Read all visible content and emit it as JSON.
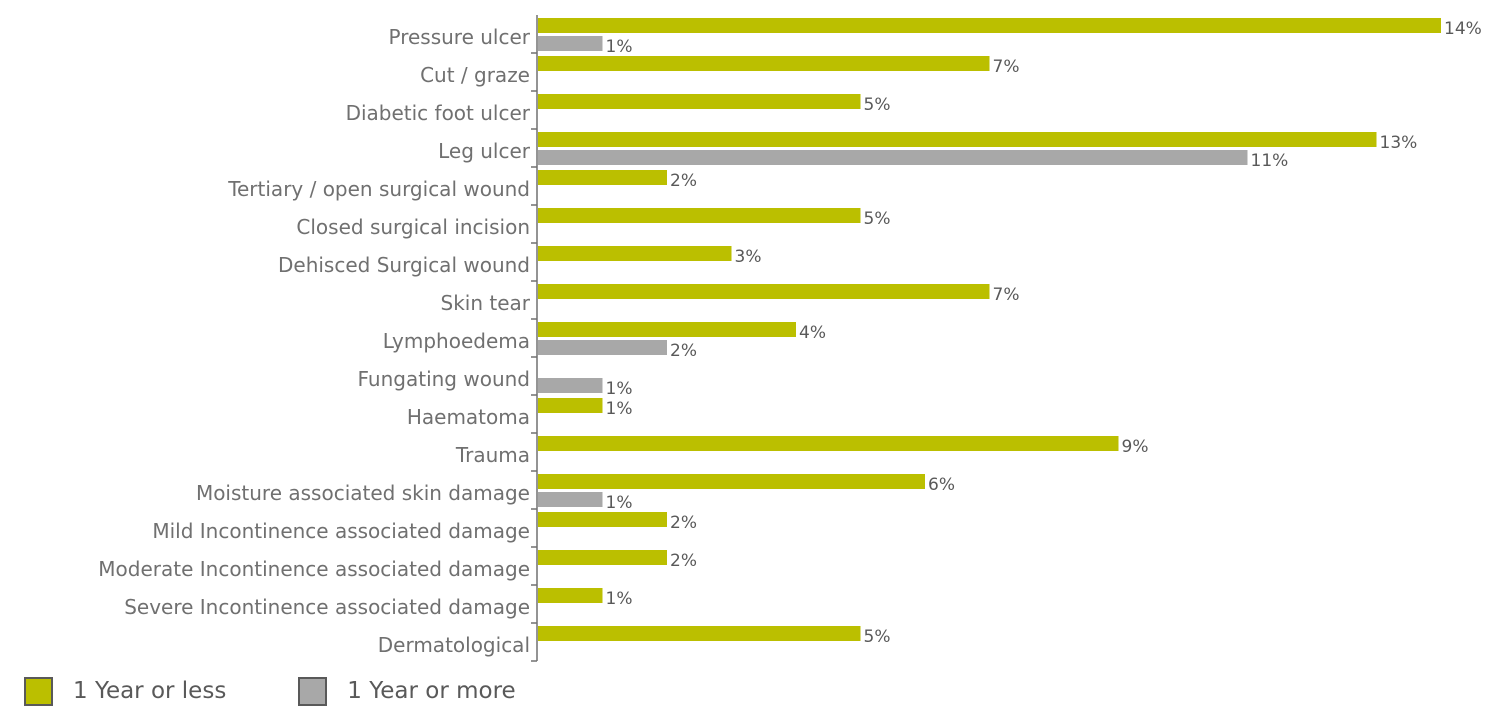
{
  "colors": {
    "series1": "#BBBF00",
    "series2": "#A8A8A8",
    "axis": "#707070"
  },
  "legend": [
    {
      "label": "1 Year or less"
    },
    {
      "label": "1 Year or more"
    }
  ],
  "chart_data": {
    "type": "bar",
    "orientation": "horizontal",
    "title": "",
    "xlabel": "",
    "ylabel": "",
    "grid": false,
    "legend_position": "bottom-left",
    "xlim": [
      0,
      14
    ],
    "categories": [
      "Pressure ulcer",
      "Cut / graze",
      "Diabetic foot ulcer",
      "Leg ulcer",
      "Tertiary / open surgical wound",
      "Closed surgical incision",
      "Dehisced Surgical wound",
      "Skin tear",
      "Lymphoedema",
      "Fungating wound",
      "Haematoma",
      "Trauma",
      "Moisture associated skin damage",
      "Mild Incontinence associated damage",
      "Moderate Incontinence associated damage",
      "Severe Incontinence associated damage",
      "Dermatological"
    ],
    "series": [
      {
        "name": "1 Year or less",
        "values": [
          14,
          7,
          5,
          13,
          2,
          5,
          3,
          7,
          4,
          null,
          1,
          9,
          6,
          2,
          2,
          1,
          5
        ],
        "labels": [
          "14%",
          "7%",
          "5%",
          "13%",
          "2%",
          "5%",
          "3%",
          "7%",
          "4%",
          null,
          "1%",
          "9%",
          "6%",
          "2%",
          "2%",
          "1%",
          "5%"
        ]
      },
      {
        "name": "1 Year or more",
        "values": [
          1,
          null,
          null,
          11,
          null,
          null,
          null,
          null,
          2,
          1,
          null,
          null,
          1,
          null,
          null,
          null,
          null
        ],
        "labels": [
          "1%",
          null,
          null,
          "11%",
          null,
          null,
          null,
          null,
          "2%",
          "1%",
          null,
          null,
          "1%",
          null,
          null,
          null,
          null
        ]
      }
    ]
  }
}
